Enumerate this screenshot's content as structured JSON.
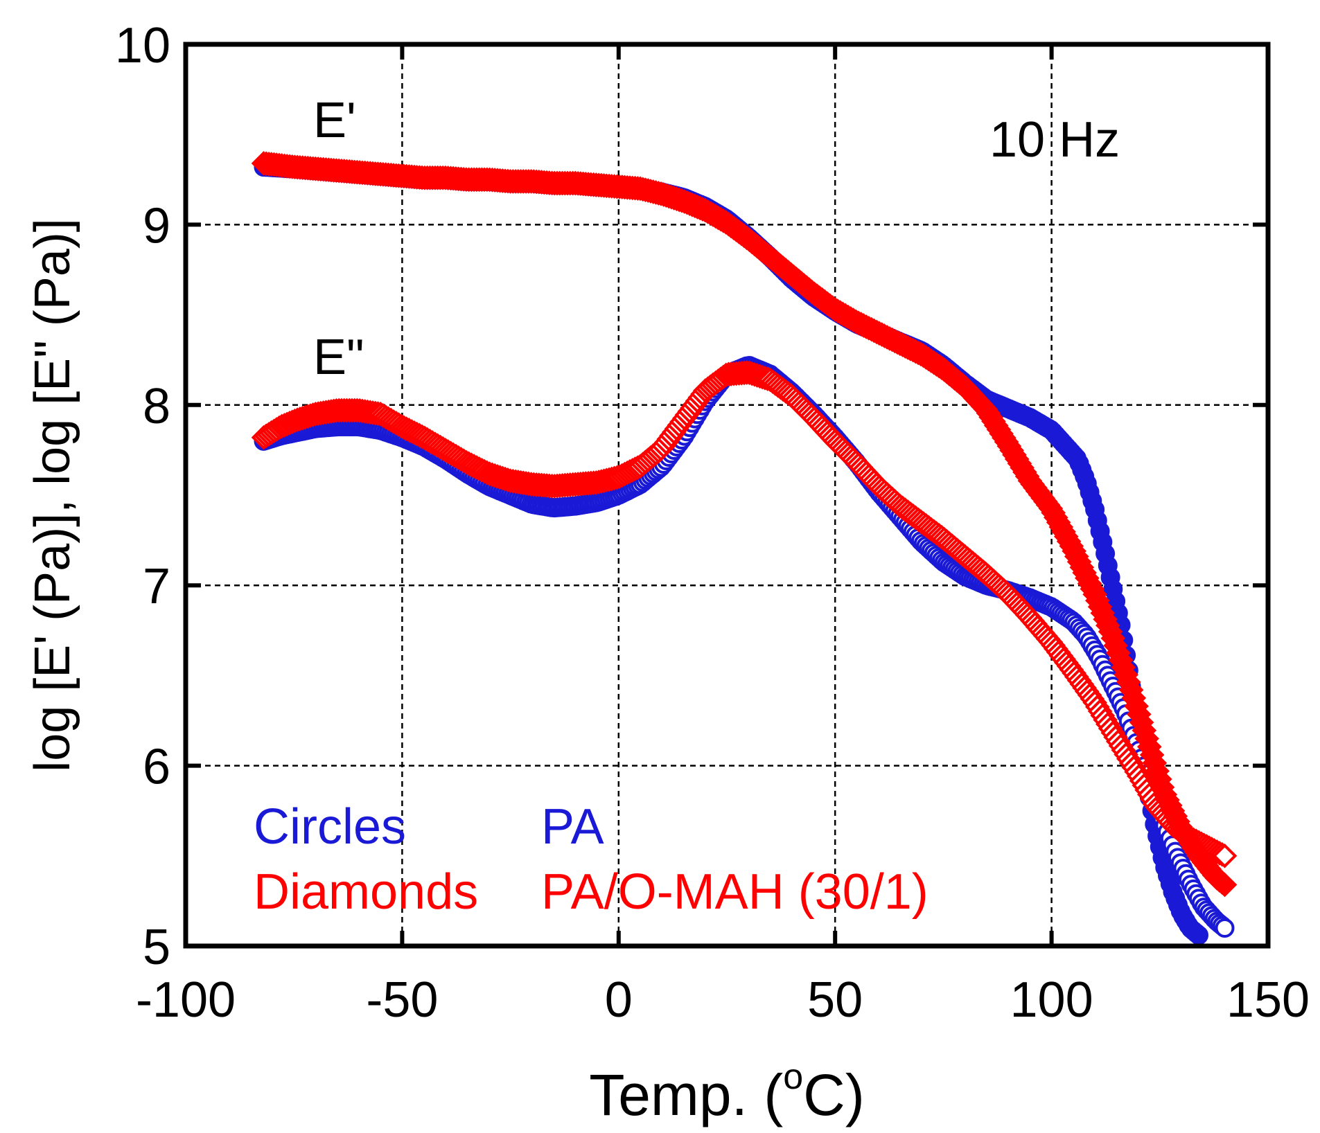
{
  "chart_data": {
    "type": "scatter",
    "xlabel": "Temp. (°C)",
    "xlabel_parts": {
      "pre": "Temp. (",
      "sup": "o",
      "post": "C)"
    },
    "ylabel": "log [E' (Pa)], log [E\" (Pa)]",
    "xlim": [
      -100,
      150
    ],
    "ylim": [
      5,
      10
    ],
    "xticks": [
      -100,
      -50,
      0,
      50,
      100,
      150
    ],
    "yticks": [
      5,
      6,
      7,
      8,
      9,
      10
    ],
    "xtick_labels": [
      "-100",
      "-50",
      "0",
      "50",
      "100",
      "150"
    ],
    "ytick_labels": [
      "5",
      "6",
      "7",
      "8",
      "9",
      "10"
    ],
    "grid": true,
    "annotations": {
      "e_prime": {
        "text": "E'",
        "x": -70,
        "y": 9.6
      },
      "e_double_prime": {
        "text": "E\"",
        "x": -70,
        "y": 8.25
      },
      "frequency": {
        "text": "10 Hz",
        "x": 104,
        "y": 9.5
      }
    },
    "legend_text": [
      {
        "marker": "Circles",
        "sample": "PA",
        "color": "#1a1ad6"
      },
      {
        "marker": "Diamonds",
        "sample": "PA/O-MAH (30/1)",
        "color": "#ff0000"
      }
    ],
    "series": [
      {
        "name": "PA",
        "quantity": "E'",
        "marker": "circle",
        "filled": true,
        "color": "#1a1ad6",
        "x": [
          -82,
          -75,
          -70,
          -65,
          -60,
          -55,
          -50,
          -45,
          -40,
          -35,
          -30,
          -25,
          -20,
          -15,
          -10,
          -5,
          0,
          5,
          10,
          15,
          20,
          25,
          30,
          35,
          40,
          45,
          50,
          55,
          60,
          65,
          70,
          75,
          80,
          85,
          90,
          95,
          100,
          103,
          106,
          108,
          110,
          112,
          114,
          116,
          118,
          120,
          122,
          124,
          126,
          128,
          130,
          132,
          134
        ],
        "y": [
          9.32,
          9.31,
          9.3,
          9.29,
          9.28,
          9.27,
          9.26,
          9.25,
          9.25,
          9.24,
          9.24,
          9.23,
          9.23,
          9.22,
          9.22,
          9.21,
          9.21,
          9.2,
          9.18,
          9.15,
          9.1,
          9.03,
          8.93,
          8.82,
          8.7,
          8.6,
          8.52,
          8.45,
          8.4,
          8.35,
          8.3,
          8.22,
          8.12,
          8.03,
          7.98,
          7.93,
          7.86,
          7.78,
          7.7,
          7.58,
          7.42,
          7.22,
          7.0,
          6.78,
          6.5,
          6.2,
          5.9,
          5.65,
          5.45,
          5.3,
          5.18,
          5.1,
          5.06
        ]
      },
      {
        "name": "PA",
        "quantity": "E\"",
        "marker": "circle",
        "filled": false,
        "color": "#1a1ad6",
        "x": [
          -82,
          -78,
          -74,
          -70,
          -65,
          -60,
          -55,
          -50,
          -45,
          -40,
          -35,
          -30,
          -25,
          -20,
          -15,
          -10,
          -5,
          0,
          5,
          10,
          15,
          20,
          25,
          30,
          35,
          40,
          45,
          50,
          55,
          60,
          65,
          70,
          75,
          80,
          85,
          90,
          95,
          100,
          105,
          108,
          111,
          114,
          117,
          120,
          123,
          126,
          129,
          132,
          135,
          138,
          140
        ],
        "y": [
          7.8,
          7.83,
          7.85,
          7.87,
          7.88,
          7.88,
          7.86,
          7.82,
          7.77,
          7.7,
          7.62,
          7.55,
          7.5,
          7.45,
          7.43,
          7.44,
          7.46,
          7.5,
          7.56,
          7.66,
          7.82,
          8.02,
          8.17,
          8.22,
          8.17,
          8.07,
          7.95,
          7.82,
          7.68,
          7.52,
          7.38,
          7.24,
          7.13,
          7.05,
          7.0,
          6.97,
          6.93,
          6.88,
          6.8,
          6.72,
          6.6,
          6.45,
          6.3,
          6.1,
          5.88,
          5.68,
          5.5,
          5.35,
          5.22,
          5.14,
          5.1
        ]
      },
      {
        "name": "PA/O-MAH (30/1)",
        "quantity": "E'",
        "marker": "diamond",
        "filled": true,
        "color": "#ff0000",
        "x": [
          -82,
          -75,
          -70,
          -65,
          -60,
          -55,
          -50,
          -45,
          -40,
          -35,
          -30,
          -25,
          -20,
          -15,
          -10,
          -5,
          0,
          5,
          10,
          15,
          20,
          25,
          30,
          35,
          40,
          45,
          50,
          55,
          60,
          65,
          70,
          75,
          80,
          85,
          90,
          95,
          100,
          105,
          110,
          114,
          118,
          122,
          126,
          130,
          134,
          138,
          140
        ],
        "y": [
          9.34,
          9.32,
          9.31,
          9.3,
          9.29,
          9.28,
          9.27,
          9.26,
          9.26,
          9.25,
          9.25,
          9.24,
          9.24,
          9.23,
          9.23,
          9.22,
          9.21,
          9.2,
          9.17,
          9.13,
          9.08,
          9.01,
          8.92,
          8.82,
          8.72,
          8.62,
          8.53,
          8.46,
          8.4,
          8.34,
          8.28,
          8.2,
          8.1,
          7.97,
          7.78,
          7.58,
          7.42,
          7.2,
          6.95,
          6.72,
          6.45,
          6.15,
          5.85,
          5.65,
          5.5,
          5.38,
          5.34
        ]
      },
      {
        "name": "PA/O-MAH (30/1)",
        "quantity": "E\"",
        "marker": "diamond",
        "filled": false,
        "color": "#ff0000",
        "x": [
          -82,
          -78,
          -74,
          -70,
          -65,
          -60,
          -55,
          -50,
          -45,
          -40,
          -35,
          -30,
          -25,
          -20,
          -15,
          -10,
          -5,
          0,
          5,
          10,
          15,
          20,
          25,
          30,
          35,
          40,
          45,
          50,
          55,
          60,
          65,
          70,
          75,
          80,
          85,
          90,
          95,
          100,
          105,
          110,
          115,
          120,
          124,
          128,
          132,
          136,
          140
        ],
        "y": [
          7.82,
          7.88,
          7.92,
          7.95,
          7.97,
          7.97,
          7.95,
          7.88,
          7.82,
          7.75,
          7.68,
          7.62,
          7.58,
          7.56,
          7.55,
          7.56,
          7.57,
          7.6,
          7.66,
          7.76,
          7.92,
          8.08,
          8.17,
          8.18,
          8.14,
          8.05,
          7.93,
          7.8,
          7.68,
          7.55,
          7.44,
          7.35,
          7.26,
          7.16,
          7.06,
          6.95,
          6.82,
          6.68,
          6.52,
          6.35,
          6.15,
          5.95,
          5.78,
          5.67,
          5.6,
          5.55,
          5.5
        ]
      }
    ]
  }
}
